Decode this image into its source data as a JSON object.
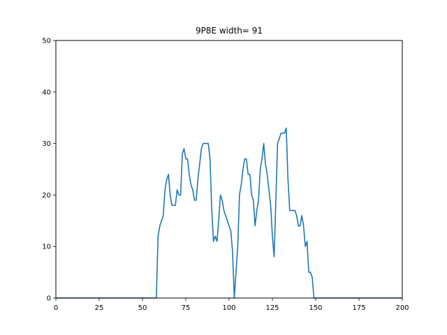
{
  "chart_data": {
    "type": "line",
    "title": "9P8E width= 91",
    "xlabel": "",
    "ylabel": "",
    "xlim": [
      0,
      200
    ],
    "ylim": [
      0,
      50
    ],
    "xticks": [
      0,
      25,
      50,
      75,
      100,
      125,
      150,
      175,
      200
    ],
    "yticks": [
      0,
      10,
      20,
      30,
      40,
      50
    ],
    "grid": false,
    "series": [
      {
        "color": "#1f77b4",
        "x": [
          0,
          58,
          59,
          60,
          61,
          62,
          63,
          64,
          65,
          66,
          67,
          68,
          69,
          70,
          71,
          72,
          73,
          74,
          75,
          76,
          77,
          78,
          79,
          80,
          81,
          82,
          83,
          84,
          85,
          86,
          87,
          88,
          89,
          90,
          91,
          92,
          93,
          94,
          95,
          96,
          97,
          98,
          99,
          100,
          101,
          102,
          103,
          104,
          105,
          106,
          107,
          108,
          109,
          110,
          111,
          112,
          113,
          114,
          115,
          116,
          117,
          118,
          119,
          120,
          121,
          122,
          123,
          124,
          125,
          126,
          127,
          128,
          129,
          130,
          131,
          132,
          133,
          134,
          135,
          136,
          137,
          138,
          139,
          140,
          141,
          142,
          143,
          144,
          145,
          146,
          147,
          148,
          149,
          150,
          200
        ],
        "y": [
          0,
          0,
          12,
          14,
          15,
          16,
          21,
          23,
          24,
          20,
          18,
          18,
          18,
          21,
          20,
          20,
          28,
          29,
          27,
          27,
          24,
          22,
          21,
          19,
          19,
          23,
          26,
          29,
          30,
          30,
          30,
          30,
          27,
          17,
          11,
          12,
          11,
          15,
          20,
          19,
          17,
          16,
          15,
          14,
          13,
          9,
          0,
          5,
          10,
          20,
          22,
          25,
          27,
          27,
          24,
          24,
          20,
          19,
          14,
          17,
          19,
          25,
          27,
          30,
          26,
          24,
          21,
          18,
          12,
          8,
          19,
          30,
          31,
          32,
          32,
          32,
          33,
          23,
          17,
          17,
          17,
          17,
          16,
          14,
          14,
          16,
          14,
          10,
          11,
          5,
          5,
          4,
          0,
          0,
          0
        ]
      }
    ]
  }
}
